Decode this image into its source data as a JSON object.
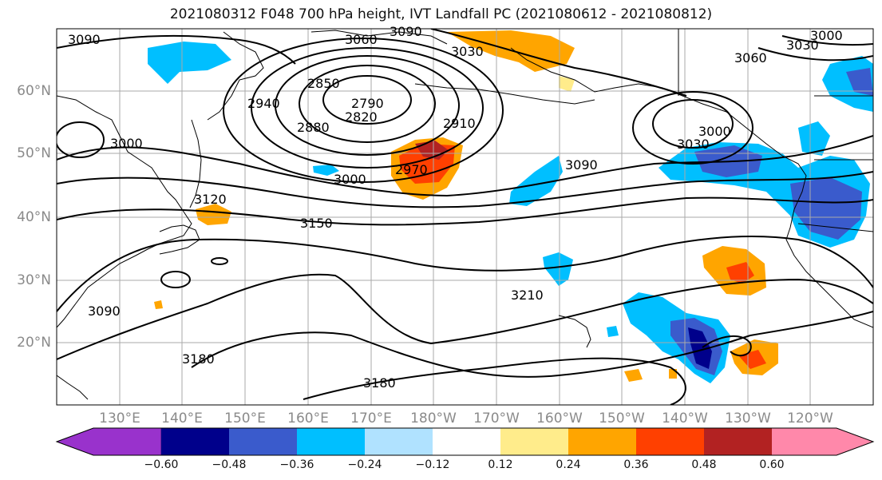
{
  "title": "2021080312 F048 700 hPa height, IVT Landfall PC (2021080612 - 2021080812)",
  "lat_labels": [
    "60°N",
    "50°N",
    "40°N",
    "30°N",
    "20°N"
  ],
  "lon_labels": [
    "130°E",
    "140°E",
    "150°E",
    "160°E",
    "170°E",
    "180°W",
    "170°W",
    "160°W",
    "150°W",
    "140°W",
    "130°W",
    "120°W"
  ],
  "contour_labels": [
    "3090",
    "3060",
    "3090",
    "3030",
    "3000",
    "3030",
    "3060",
    "2850",
    "2790",
    "2820",
    "2940",
    "2880",
    "2910",
    "3000",
    "2970",
    "3000",
    "3090",
    "3030",
    "3000",
    "3120",
    "3150",
    "3090",
    "3210",
    "3180",
    "3180"
  ],
  "colorbar": {
    "ticks": [
      "−0.60",
      "−0.48",
      "−0.36",
      "−0.24",
      "−0.12",
      "0.12",
      "0.24",
      "0.36",
      "0.48",
      "0.60"
    ],
    "colors": [
      "#9932cc",
      "#00008b",
      "#3a5bcc",
      "#00bfff",
      "#b0e2ff",
      "#ffffff",
      "#ffec8b",
      "#ffa500",
      "#ff4000",
      "#b22222",
      "#ff88aa"
    ]
  }
}
